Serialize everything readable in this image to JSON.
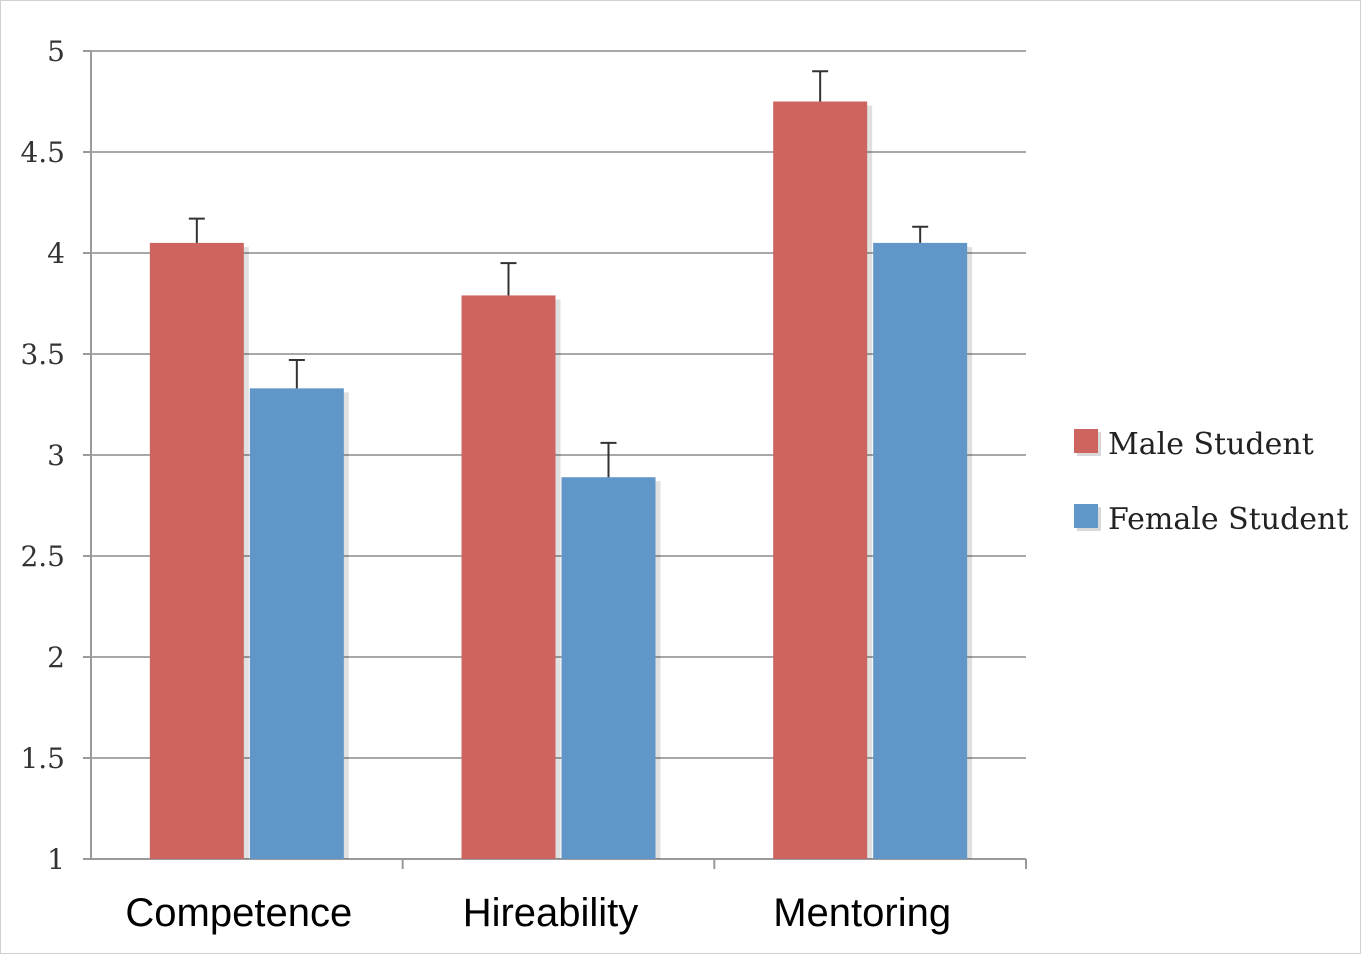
{
  "chart_data": {
    "type": "bar",
    "categories": [
      "Competence",
      "Hireability",
      "Mentoring"
    ],
    "series": [
      {
        "name": "Male Student",
        "color": "#cd6460",
        "values": [
          4.05,
          3.79,
          4.75
        ],
        "errors": [
          0.12,
          0.16,
          0.15
        ]
      },
      {
        "name": "Female Student",
        "color": "#6096c8",
        "values": [
          3.33,
          2.89,
          4.05
        ],
        "errors": [
          0.14,
          0.17,
          0.08
        ]
      }
    ],
    "ylim": [
      1,
      5
    ],
    "yticks": [
      "1",
      "1.5",
      "2",
      "2.5",
      "3",
      "3.5",
      "4",
      "4.5",
      "5"
    ],
    "grid": true,
    "legend_position": "right",
    "title": "",
    "xlabel": "",
    "ylabel": ""
  }
}
